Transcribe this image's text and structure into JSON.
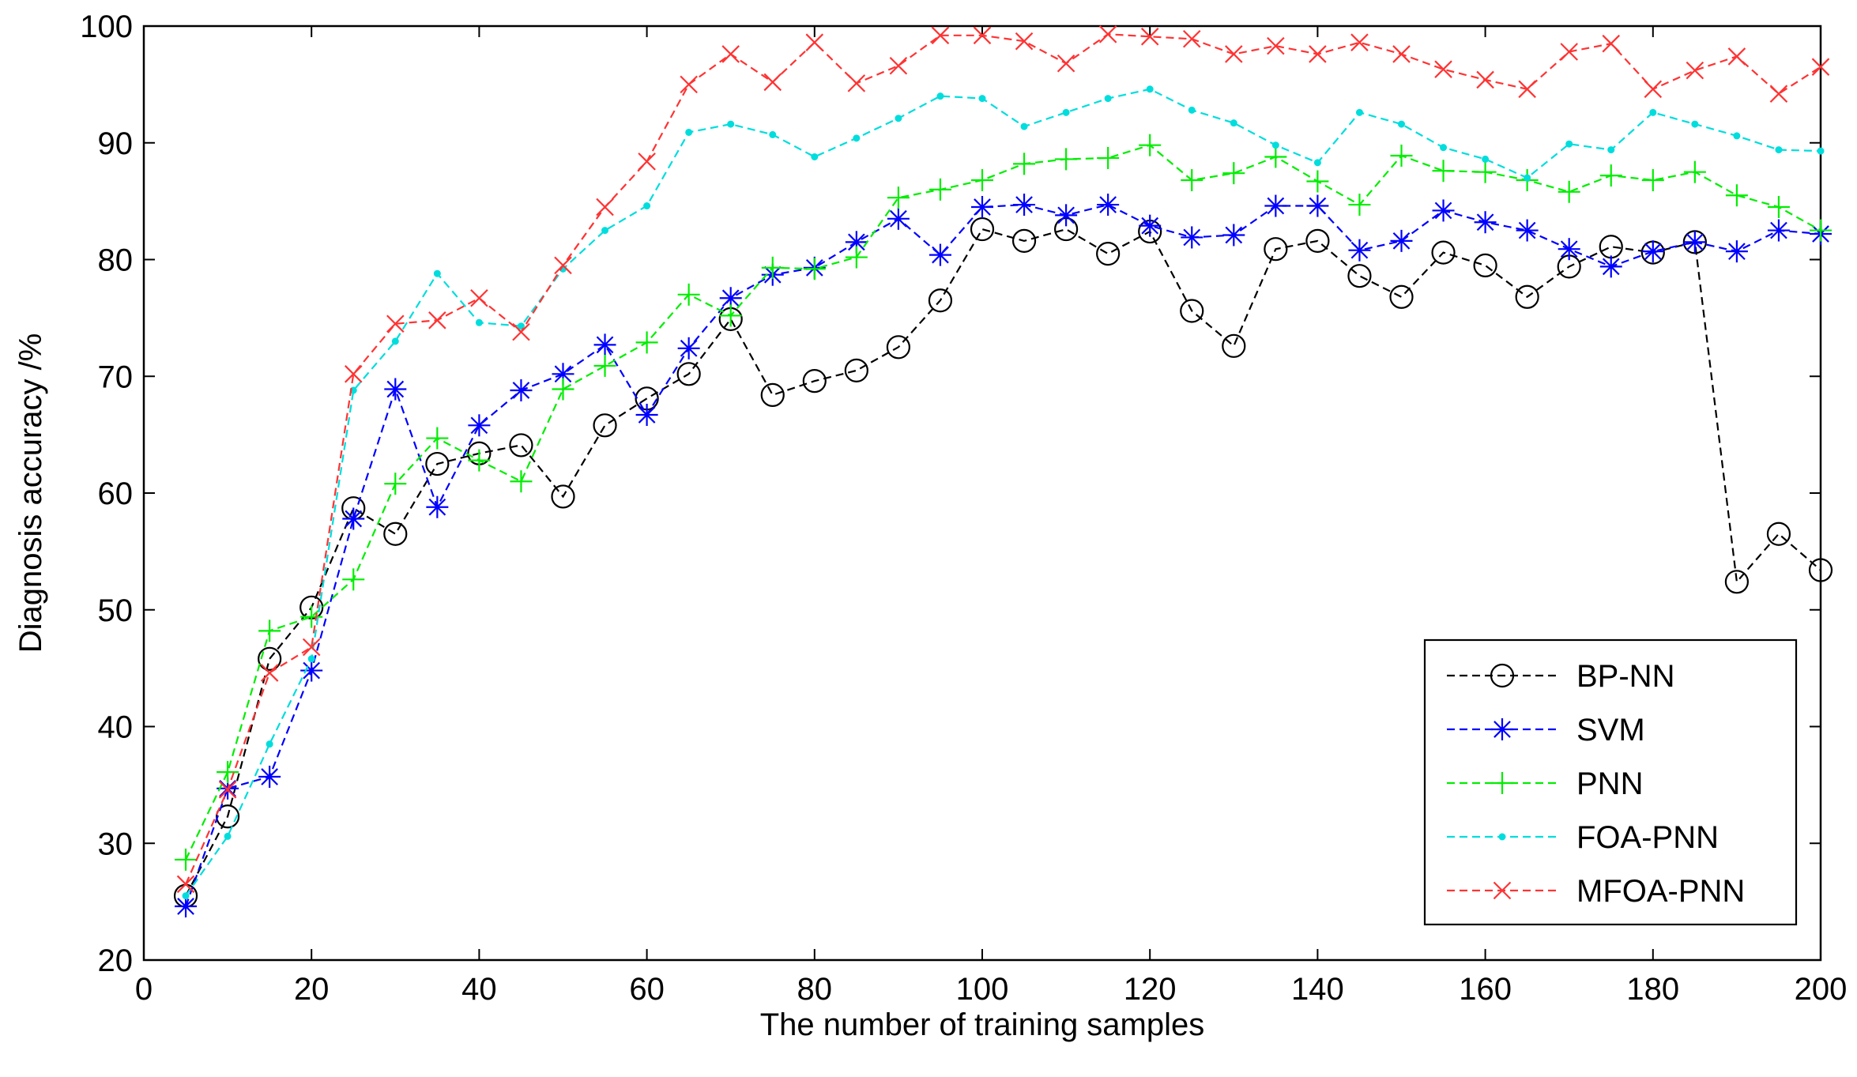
{
  "chart_data": {
    "type": "line",
    "title": "",
    "xlabel": "The number of training samples",
    "ylabel": "Diagnosis accuracy /%",
    "xlim": [
      0,
      200
    ],
    "ylim": [
      20,
      100
    ],
    "xticks": [
      0,
      20,
      40,
      60,
      80,
      100,
      120,
      140,
      160,
      180,
      200
    ],
    "yticks": [
      20,
      30,
      40,
      50,
      60,
      70,
      80,
      90,
      100
    ],
    "grid": false,
    "legend_position": "bottom-right",
    "x": [
      5,
      10,
      15,
      20,
      25,
      30,
      35,
      40,
      45,
      50,
      55,
      60,
      65,
      70,
      75,
      80,
      85,
      90,
      95,
      100,
      105,
      110,
      115,
      120,
      125,
      130,
      135,
      140,
      145,
      150,
      155,
      160,
      165,
      170,
      175,
      180,
      185,
      190,
      195,
      200
    ],
    "series": [
      {
        "name": "BP-NN",
        "color": "#000000",
        "marker": "circle",
        "values": [
          25.5,
          32.3,
          45.8,
          50.2,
          58.7,
          56.5,
          62.5,
          63.4,
          64.1,
          59.7,
          65.8,
          68.1,
          70.2,
          74.9,
          68.4,
          69.6,
          70.5,
          72.5,
          76.5,
          82.6,
          81.6,
          82.6,
          80.5,
          82.4,
          75.6,
          72.6,
          80.9,
          81.6,
          78.6,
          76.8,
          80.6,
          79.5,
          76.8,
          79.4,
          81.1,
          80.6,
          81.5,
          52.4,
          56.5,
          53.4
        ]
      },
      {
        "name": "SVM",
        "color": "#0000ff",
        "marker": "asterisk",
        "values": [
          24.6,
          34.7,
          35.7,
          44.8,
          57.8,
          68.9,
          58.8,
          65.8,
          68.8,
          70.2,
          72.7,
          66.7,
          72.4,
          76.7,
          78.7,
          79.3,
          81.5,
          83.5,
          80.4,
          84.5,
          84.7,
          83.8,
          84.7,
          82.9,
          81.9,
          82.1,
          84.6,
          84.6,
          80.8,
          81.6,
          84.2,
          83.2,
          82.5,
          80.9,
          79.4,
          80.7,
          81.5,
          80.7,
          82.5,
          82.2
        ]
      },
      {
        "name": "PNN",
        "color": "#00ee00",
        "marker": "plus",
        "values": [
          28.6,
          36.1,
          48.2,
          49.4,
          52.6,
          60.8,
          64.7,
          62.8,
          61.0,
          68.9,
          70.9,
          72.9,
          77.0,
          75.2,
          79.3,
          79.2,
          80.2,
          85.3,
          86.0,
          86.8,
          88.2,
          88.6,
          88.7,
          89.8,
          86.8,
          87.4,
          88.8,
          86.7,
          84.7,
          88.9,
          87.6,
          87.5,
          86.8,
          85.8,
          87.2,
          86.8,
          87.5,
          85.5,
          84.5,
          82.5
        ]
      },
      {
        "name": "FOA-PNN",
        "color": "#00dddd",
        "marker": "point",
        "values": [
          25.5,
          30.6,
          38.5,
          45.8,
          68.8,
          73.0,
          78.8,
          74.6,
          74.3,
          79.2,
          82.5,
          84.6,
          90.9,
          91.6,
          90.7,
          88.8,
          90.4,
          92.1,
          94.0,
          93.8,
          91.4,
          92.6,
          93.8,
          94.6,
          92.8,
          91.7,
          89.8,
          88.3,
          92.6,
          91.6,
          89.6,
          88.6,
          87.0,
          89.9,
          89.4,
          92.6,
          91.6,
          90.6,
          89.4,
          89.3
        ]
      },
      {
        "name": "MFOA-PNN",
        "color": "#ff3333",
        "marker": "x",
        "values": [
          26.5,
          34.6,
          44.6,
          46.8,
          70.2,
          74.5,
          74.8,
          76.7,
          73.8,
          79.5,
          84.5,
          88.4,
          95.0,
          97.6,
          95.2,
          98.6,
          95.1,
          96.6,
          99.2,
          99.2,
          98.7,
          96.8,
          99.3,
          99.1,
          98.9,
          97.6,
          98.3,
          97.6,
          98.6,
          97.6,
          96.3,
          95.4,
          94.6,
          97.8,
          98.5,
          94.6,
          96.2,
          97.4,
          94.2,
          96.5
        ]
      }
    ]
  }
}
